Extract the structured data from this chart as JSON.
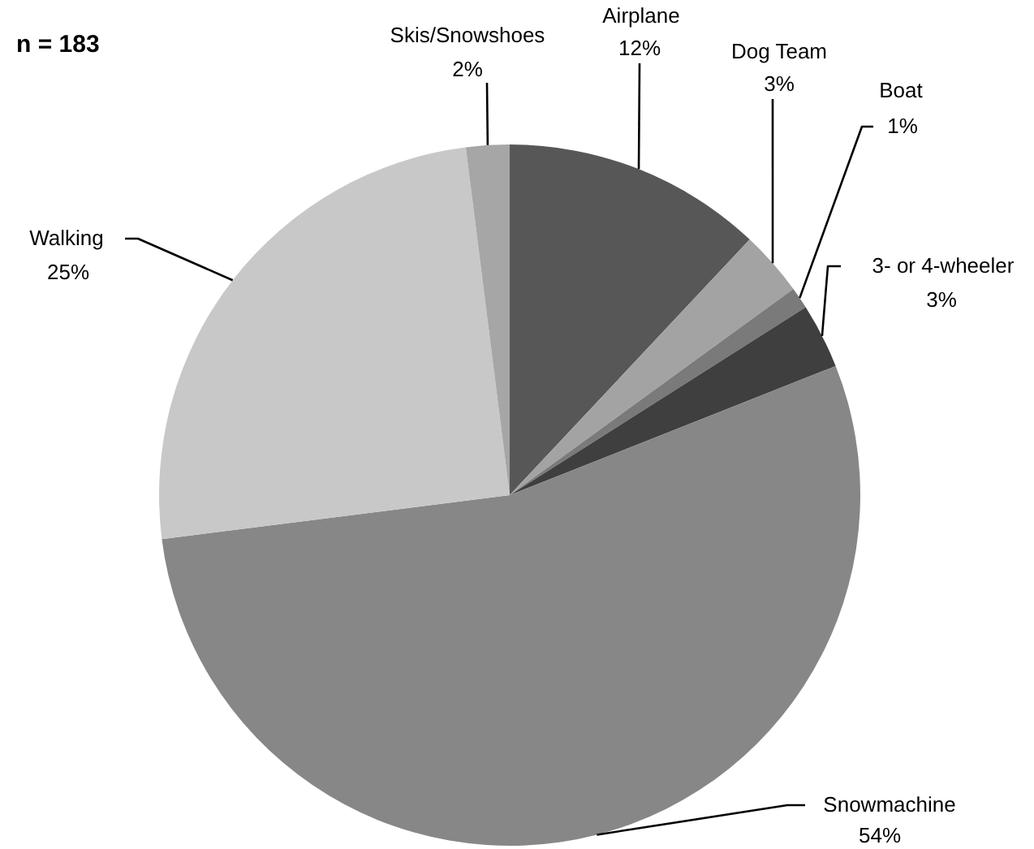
{
  "chart_data": {
    "type": "pie",
    "subtitle": "n = 183",
    "categories": [
      "Airplane",
      "Dog Team",
      "Boat",
      "3- or 4-wheeler",
      "Snowmachine",
      "Walking",
      "Skis/Snowshoes"
    ],
    "values": [
      12,
      3,
      1,
      3,
      54,
      25,
      2
    ],
    "value_labels": [
      "12%",
      "3%",
      "1%",
      "3%",
      "54%",
      "25%",
      "2%"
    ],
    "colors": [
      "#575757",
      "#a3a3a3",
      "#7a7a7a",
      "#3f3f3f",
      "#878787",
      "#c8c8c8",
      "#a6a6a6"
    ]
  }
}
